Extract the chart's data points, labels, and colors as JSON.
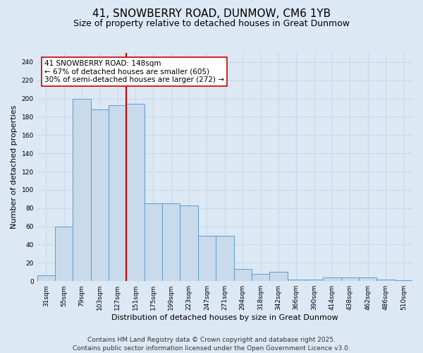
{
  "title_line1": "41, SNOWBERRY ROAD, DUNMOW, CM6 1YB",
  "title_line2": "Size of property relative to detached houses in Great Dunmow",
  "xlabel": "Distribution of detached houses by size in Great Dunmow",
  "ylabel": "Number of detached properties",
  "categories": [
    "31sqm",
    "55sqm",
    "79sqm",
    "103sqm",
    "127sqm",
    "151sqm",
    "175sqm",
    "199sqm",
    "223sqm",
    "247sqm",
    "271sqm",
    "294sqm",
    "318sqm",
    "342sqm",
    "366sqm",
    "390sqm",
    "414sqm",
    "438sqm",
    "462sqm",
    "486sqm",
    "510sqm"
  ],
  "values": [
    6,
    60,
    200,
    188,
    193,
    194,
    85,
    85,
    83,
    50,
    50,
    13,
    8,
    10,
    2,
    2,
    4,
    4,
    4,
    2,
    1
  ],
  "bar_color": "#c9daea",
  "bar_edge_color": "#5b9bd5",
  "grid_color": "#c8d9ea",
  "bg_color": "#dce8f4",
  "vline_x": 4.5,
  "vline_color": "#cc0000",
  "annotation_text": "41 SNOWBERRY ROAD: 148sqm\n← 67% of detached houses are smaller (605)\n30% of semi-detached houses are larger (272) →",
  "annotation_box_color": "#ffffff",
  "annotation_box_edge": "#cc0000",
  "ylim": [
    0,
    250
  ],
  "yticks": [
    0,
    20,
    40,
    60,
    80,
    100,
    120,
    140,
    160,
    180,
    200,
    220,
    240
  ],
  "footer_line1": "Contains HM Land Registry data © Crown copyright and database right 2025.",
  "footer_line2": "Contains public sector information licensed under the Open Government Licence v3.0.",
  "title_fontsize": 11,
  "subtitle_fontsize": 9,
  "xlabel_fontsize": 8,
  "ylabel_fontsize": 8,
  "tick_fontsize": 6.5,
  "annotation_fontsize": 7.5,
  "footer_fontsize": 6.5
}
